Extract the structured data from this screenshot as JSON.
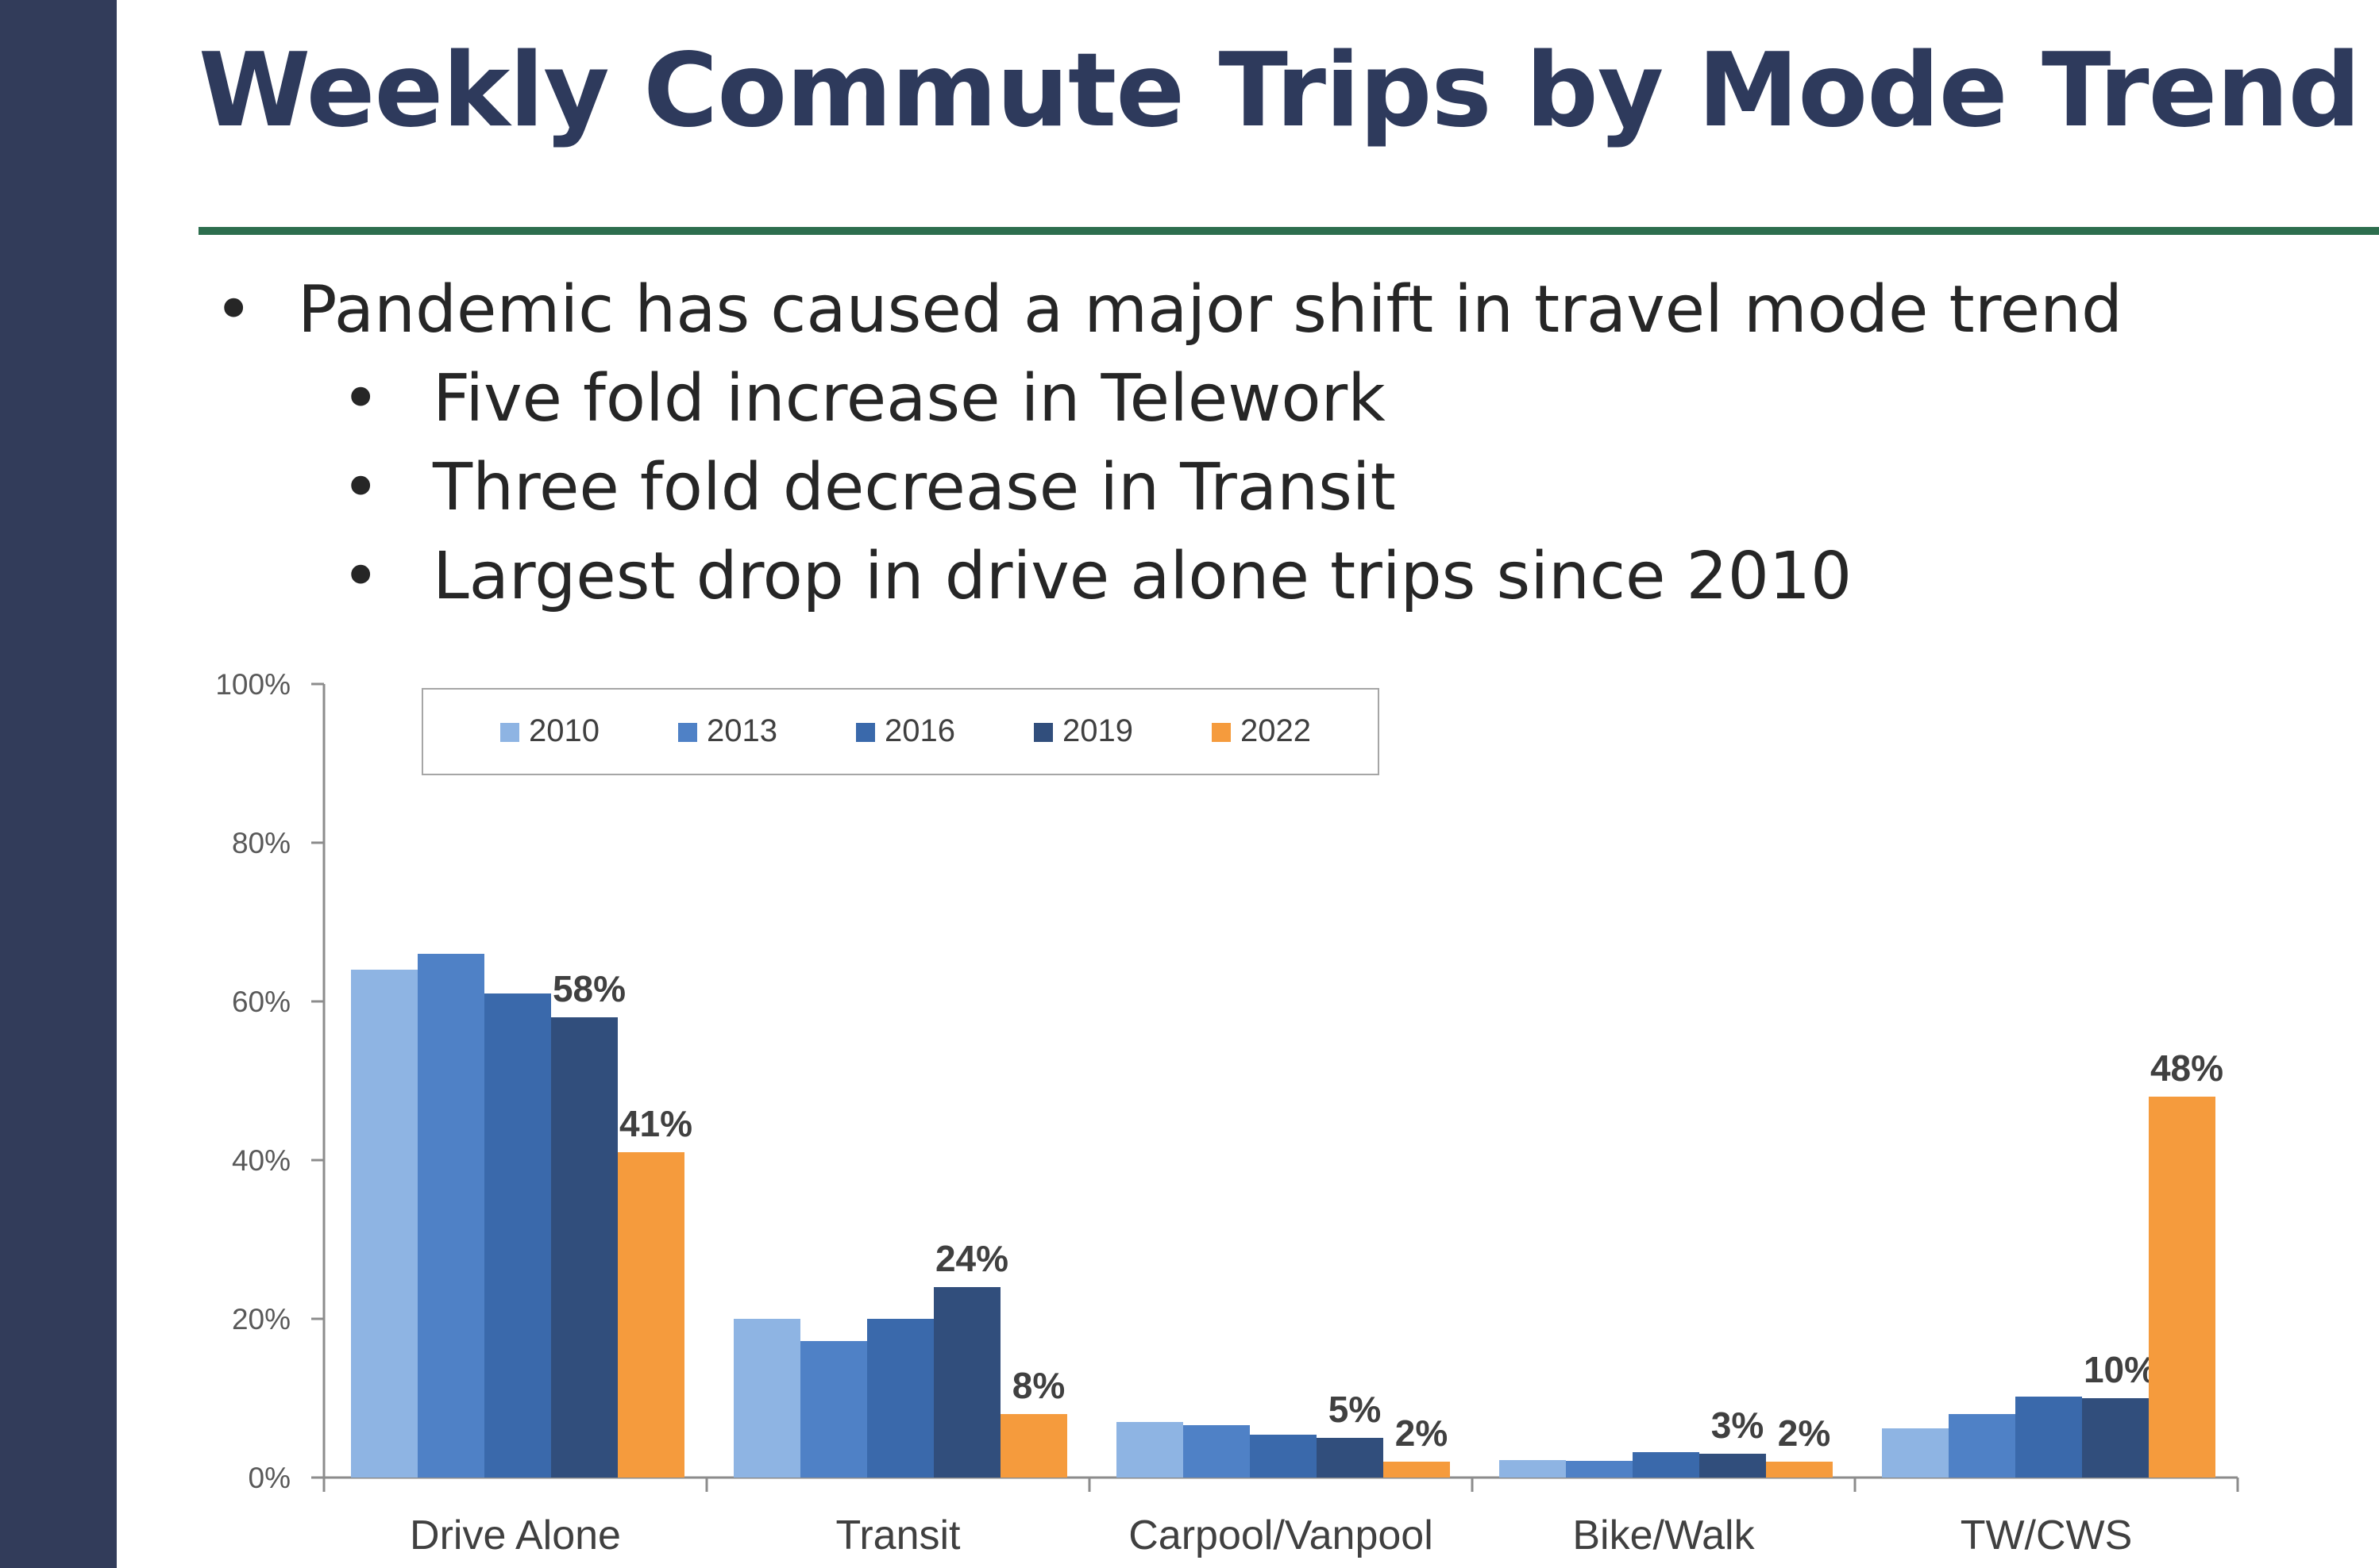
{
  "slide": {
    "title": "Weekly Commute Trips by Mode Trend",
    "bullets": [
      {
        "level": 1,
        "text": "Pandemic has caused a major shift in travel mode trend"
      },
      {
        "level": 2,
        "text": "Five fold increase in Telework"
      },
      {
        "level": 2,
        "text": "Three fold decrease in Transit"
      },
      {
        "level": 2,
        "text": "Largest drop in drive alone trips since 2010"
      }
    ],
    "bullet_glyph": "•"
  },
  "colors": {
    "sidebar": "#323c5a",
    "title": "#2e3a5c",
    "rule": "#2d6e4e",
    "series": [
      "#8eb4e3",
      "#4f81c6",
      "#3a69ab",
      "#314e7c",
      "#f59b3d"
    ]
  },
  "chart_data": {
    "type": "bar",
    "categories": [
      "Drive Alone",
      "Transit",
      "Carpool/Vanpool",
      "Bike/Walk",
      "TW/CWS"
    ],
    "series": [
      {
        "name": "2010",
        "values": [
          64,
          20,
          7,
          2.2,
          6.2
        ]
      },
      {
        "name": "2013",
        "values": [
          66,
          17.2,
          6.6,
          2.1,
          8
        ]
      },
      {
        "name": "2016",
        "values": [
          61,
          20,
          5.4,
          3.2,
          10.2
        ]
      },
      {
        "name": "2019",
        "values": [
          58,
          24,
          5,
          3,
          10
        ]
      },
      {
        "name": "2022",
        "values": [
          41,
          8,
          2,
          2,
          48
        ]
      }
    ],
    "data_labels": {
      "2019": [
        "58%",
        "24%",
        "5%",
        "3%",
        "10%"
      ],
      "2022": [
        "41%",
        "8%",
        "2%",
        "2%",
        "48%"
      ]
    },
    "y_ticks": [
      "0%",
      "20%",
      "40%",
      "60%",
      "80%",
      "100%"
    ],
    "ylim": [
      0,
      100
    ],
    "legend_position": "top",
    "title": "",
    "xlabel": "",
    "ylabel": ""
  }
}
